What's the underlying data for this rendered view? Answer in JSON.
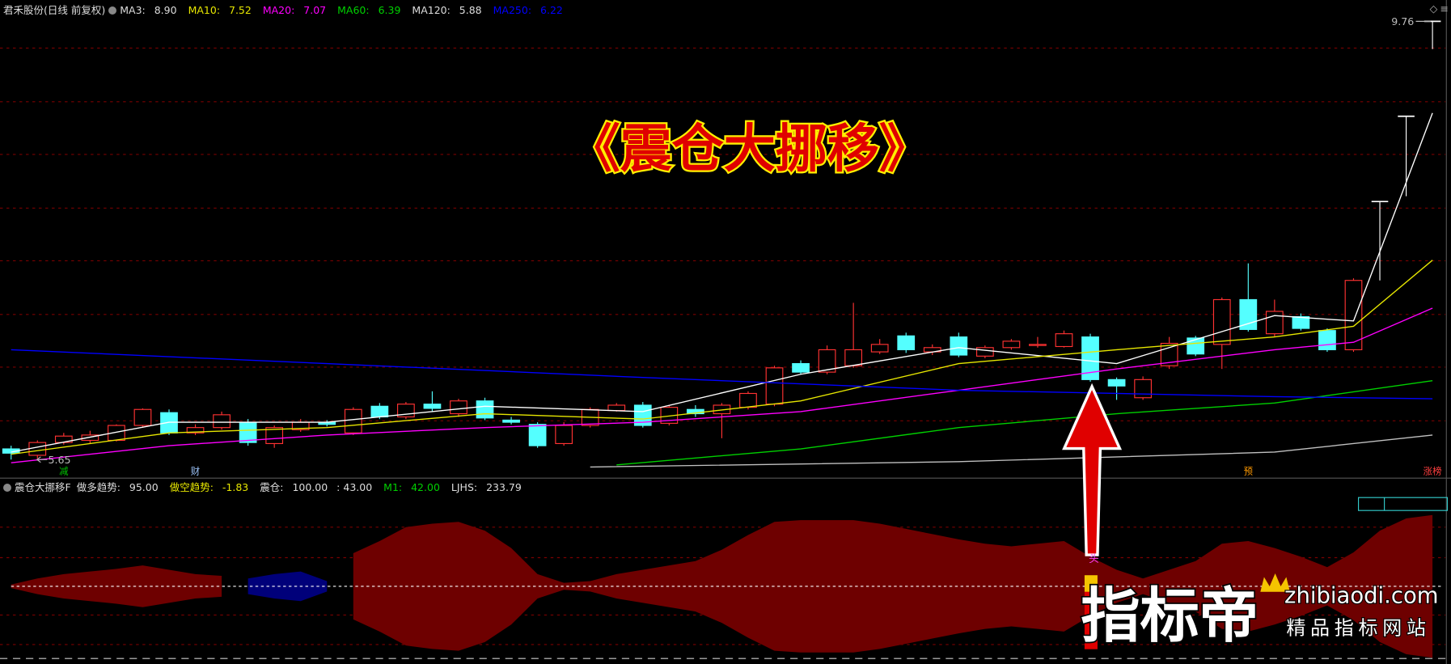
{
  "header": {
    "stock": "君禾股份(日线 前复权)"
  },
  "chart_data": [
    {
      "type": "candlestick",
      "title": "君禾股份(日线 前复权)",
      "categories": [
        null,
        null,
        null,
        null,
        null,
        null,
        null,
        null,
        null,
        null,
        null,
        null,
        null,
        null,
        null,
        null,
        null,
        null,
        null,
        null,
        null,
        null,
        null,
        null,
        null,
        null,
        null,
        null,
        null,
        null,
        null,
        null,
        null,
        null,
        null,
        null,
        null,
        null,
        null,
        null,
        null,
        null,
        null,
        null,
        null,
        null,
        null,
        null,
        null,
        null,
        null,
        null,
        null,
        null,
        null
      ],
      "open": [
        5.75,
        5.69,
        5.81,
        5.83,
        5.83,
        5.97,
        6.09,
        5.9,
        5.95,
        6.0,
        5.8,
        5.93,
        6.0,
        5.9,
        6.15,
        6.05,
        6.17,
        6.08,
        6.2,
        6.02,
        5.98,
        5.8,
        5.97,
        6.11,
        6.16,
        5.99,
        6.12,
        6.08,
        6.14,
        6.17,
        6.55,
        6.47,
        6.53,
        6.66,
        6.81,
        6.66,
        6.8,
        6.62,
        6.7,
        6.72,
        6.71,
        6.8,
        6.4,
        6.23,
        6.53,
        6.79,
        6.73,
        7.15,
        6.83,
        6.99,
        6.86,
        6.68,
        8.07,
        8.87,
        9.76
      ],
      "high": [
        5.78,
        5.83,
        5.9,
        5.92,
        5.98,
        6.13,
        6.12,
        5.98,
        6.1,
        6.03,
        5.97,
        6.03,
        6.02,
        6.14,
        6.18,
        6.19,
        6.29,
        6.22,
        6.23,
        6.05,
        6.0,
        6.0,
        6.14,
        6.18,
        6.19,
        6.16,
        6.16,
        6.18,
        6.29,
        6.53,
        6.58,
        6.72,
        7.12,
        6.78,
        6.84,
        6.73,
        6.84,
        6.72,
        6.78,
        6.8,
        6.86,
        6.83,
        6.42,
        6.43,
        6.8,
        6.81,
        7.17,
        7.49,
        7.15,
        7.02,
        6.88,
        7.35,
        8.07,
        8.87,
        9.76
      ],
      "low": [
        5.65,
        5.66,
        5.79,
        5.8,
        5.82,
        5.95,
        5.88,
        5.88,
        5.93,
        5.78,
        5.76,
        5.91,
        5.96,
        5.88,
        6.03,
        6.03,
        6.1,
        6.05,
        6.02,
        5.98,
        5.76,
        5.78,
        5.95,
        6.1,
        5.95,
        5.97,
        6.05,
        5.85,
        6.12,
        6.15,
        6.45,
        6.45,
        6.51,
        6.64,
        6.65,
        6.63,
        6.61,
        6.6,
        6.68,
        6.7,
        6.7,
        6.38,
        6.21,
        6.21,
        6.5,
        6.62,
        6.5,
        6.85,
        6.8,
        6.86,
        6.66,
        6.66,
        7.33,
        8.12,
        9.5
      ],
      "close": [
        5.71,
        5.81,
        5.87,
        5.88,
        5.97,
        6.12,
        5.9,
        5.95,
        6.07,
        5.81,
        5.95,
        6.0,
        5.98,
        6.12,
        6.05,
        6.17,
        6.13,
        6.2,
        6.04,
        6.0,
        5.78,
        5.97,
        6.12,
        6.16,
        5.97,
        6.14,
        6.08,
        6.16,
        6.27,
        6.51,
        6.47,
        6.68,
        6.68,
        6.73,
        6.68,
        6.7,
        6.63,
        6.7,
        6.76,
        6.73,
        6.83,
        6.4,
        6.34,
        6.4,
        6.74,
        6.64,
        7.15,
        6.87,
        7.04,
        6.88,
        6.68,
        7.33,
        8.07,
        8.87,
        9.76
      ],
      "up_color": "#ff3232",
      "down_color": "#54ffff",
      "flat_color": "#ffffff",
      "ylim": [
        5.58,
        9.83
      ],
      "series": [
        {
          "name": "MA3",
          "last": {
            "value": 8.9,
            "label": "8.90"
          },
          "color": "#ffffff",
          "x": [
            0,
            6,
            12,
            18,
            24,
            30,
            36,
            42,
            48,
            51,
            54
          ],
          "values": [
            5.72,
            6.0,
            6.0,
            6.15,
            6.1,
            6.45,
            6.7,
            6.55,
            7.0,
            6.95,
            8.9
          ]
        },
        {
          "name": "MA10",
          "last": 7.52,
          "color": "#e6e600",
          "x": [
            0,
            6,
            12,
            18,
            24,
            30,
            36,
            42,
            48,
            51,
            54
          ],
          "values": [
            5.7,
            5.9,
            5.95,
            6.08,
            6.03,
            6.2,
            6.55,
            6.68,
            6.8,
            6.9,
            7.52
          ]
        },
        {
          "name": "MA20",
          "last": 7.07,
          "color": "#ff00ff",
          "x": [
            0,
            6,
            12,
            18,
            24,
            30,
            36,
            42,
            48,
            51,
            54
          ],
          "values": [
            5.62,
            5.78,
            5.88,
            5.95,
            6.0,
            6.1,
            6.3,
            6.5,
            6.68,
            6.75,
            7.07
          ]
        },
        {
          "name": "MA60",
          "last": 6.39,
          "color": "#00d000",
          "x": [
            23,
            30,
            36,
            42,
            48,
            54
          ],
          "values": [
            5.6,
            5.75,
            5.95,
            6.08,
            6.18,
            6.39
          ]
        },
        {
          "name": "MA120",
          "last": 5.88,
          "color": "#c0c0c0",
          "x": [
            22,
            36,
            48,
            54
          ],
          "values": [
            5.58,
            5.63,
            5.72,
            5.88
          ]
        },
        {
          "name": "MA250",
          "last": 6.22,
          "color": "#0000ff",
          "x": [
            0,
            12,
            24,
            36,
            42,
            48,
            54
          ],
          "values": [
            6.68,
            6.55,
            6.42,
            6.3,
            6.27,
            6.24,
            6.22
          ]
        }
      ],
      "high_label": 9.76,
      "low_label": 5.65,
      "events": [
        {
          "label": "减",
          "index": 2,
          "color": "#00c000"
        },
        {
          "label": "财",
          "index": 7,
          "color": "#a0c8ff"
        },
        {
          "label": "预",
          "index": 47,
          "color": "#ff9900"
        },
        {
          "label": "涨榜",
          "index": 54,
          "color": "#ff4040"
        }
      ]
    },
    {
      "type": "area",
      "title": "震仓大挪移F",
      "indicators": [
        {
          "name": "做多趋势",
          "values": [
            {
              "value": 95,
              "label": "95.00"
            }
          ],
          "color": "#dddddd"
        },
        {
          "name": "做空趋势",
          "values": [
            -1.83
          ],
          "color": "#e6e600"
        },
        {
          "name": "震仓",
          "values": [
            {
              "value": 100,
              "label": "100.00"
            },
            {
              "value": 43,
              "label": "43.00"
            }
          ],
          "color": "#dddddd"
        },
        {
          "name": "M1",
          "values": [
            {
              "value": 42,
              "label": "42.00"
            }
          ],
          "color": "#00d000"
        },
        {
          "name": "LJHS",
          "values": [
            233.79
          ],
          "color": "#dddddd"
        }
      ],
      "categories": [
        null,
        null,
        null,
        null,
        null,
        null,
        null,
        null,
        null,
        null,
        null,
        null,
        null,
        null,
        null,
        null,
        null,
        null,
        null,
        null,
        null,
        null,
        null,
        null,
        null,
        null,
        null,
        null,
        null,
        null,
        null,
        null,
        null,
        null,
        null,
        null,
        null,
        null,
        null,
        null,
        null,
        null,
        null,
        null,
        null,
        null,
        null,
        null,
        null,
        null,
        null,
        null,
        null,
        null,
        null
      ],
      "values": [
        2,
        9,
        14,
        17,
        20,
        24,
        19,
        14,
        12,
        -9,
        -14,
        -17,
        -6,
        38,
        52,
        68,
        72,
        74,
        64,
        44,
        14,
        4,
        6,
        14,
        19,
        24,
        29,
        42,
        59,
        74,
        76,
        76,
        76,
        72,
        66,
        60,
        54,
        49,
        46,
        49,
        52,
        34,
        19,
        9,
        19,
        29,
        49,
        52,
        44,
        34,
        22,
        39,
        64,
        78,
        82
      ],
      "color": "#6e0000",
      "negative_color": "#00007a",
      "ylim": [
        -85,
        85
      ],
      "signal_label": "头"
    }
  ],
  "overlay": {
    "title": "《震仓大挪移》",
    "watermark": {
      "brand": "指标帝",
      "domain": "zhibiaodi.com",
      "slogan": "精品指标网站"
    }
  }
}
